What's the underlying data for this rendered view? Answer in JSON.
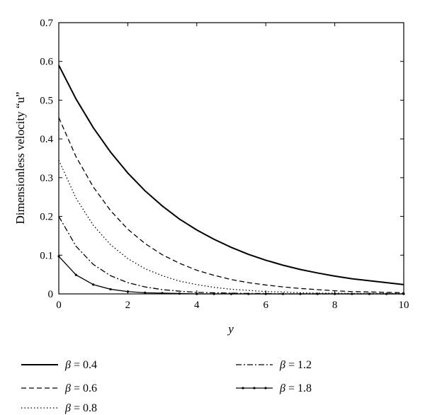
{
  "chart_data": {
    "type": "line",
    "title": "",
    "xlabel": "y",
    "ylabel": "Dimensionless velocity “u”",
    "xlim": [
      0,
      10
    ],
    "ylim": [
      0,
      0.7
    ],
    "xticks": [
      0,
      2,
      4,
      6,
      8,
      10
    ],
    "xtick_labels": [
      "0",
      "2",
      "4",
      "6",
      "8",
      "10"
    ],
    "yticks": [
      0,
      0.1,
      0.2,
      0.3,
      0.4,
      0.5,
      0.6,
      0.7
    ],
    "ytick_labels": [
      "0",
      "0.1",
      "0.2",
      "0.3",
      "0.4",
      "0.5",
      "0.6",
      "0.7"
    ],
    "grid": false,
    "legend_position": "bottom",
    "x": [
      0,
      0.5,
      1,
      1.5,
      2,
      2.5,
      3,
      3.5,
      4,
      4.5,
      5,
      5.5,
      6,
      6.5,
      7,
      7.5,
      8,
      8.5,
      9,
      9.5,
      10
    ],
    "series": [
      {
        "name": "β = 0.4",
        "style": "solid",
        "values": [
          0.59,
          0.503,
          0.429,
          0.366,
          0.312,
          0.266,
          0.227,
          0.193,
          0.165,
          0.141,
          0.12,
          0.102,
          0.087,
          0.074,
          0.063,
          0.054,
          0.046,
          0.039,
          0.034,
          0.029,
          0.024
        ]
      },
      {
        "name": "β = 0.6",
        "style": "dashed",
        "values": [
          0.455,
          0.354,
          0.276,
          0.215,
          0.167,
          0.13,
          0.101,
          0.079,
          0.061,
          0.048,
          0.037,
          0.029,
          0.023,
          0.018,
          0.014,
          0.011,
          0.008,
          0.006,
          0.005,
          0.004,
          0.003
        ]
      },
      {
        "name": "β = 0.8",
        "style": "dotted",
        "values": [
          0.345,
          0.247,
          0.177,
          0.127,
          0.091,
          0.065,
          0.047,
          0.033,
          0.024,
          0.017,
          0.012,
          0.009,
          0.006,
          0.005,
          0.003,
          0.002,
          0.002,
          0.001,
          0.001,
          0.001,
          0.001
        ]
      },
      {
        "name": "β = 1.2",
        "style": "dashdot",
        "values": [
          0.2,
          0.123,
          0.076,
          0.047,
          0.029,
          0.018,
          0.011,
          0.007,
          0.004,
          0.003,
          0.002,
          0.001,
          0.001,
          0.0,
          0.0,
          0.0,
          0.0,
          0.0,
          0.0,
          0.0,
          0.0
        ]
      },
      {
        "name": "β = 1.8",
        "style": "solid-marker",
        "values": [
          0.097,
          0.049,
          0.024,
          0.012,
          0.006,
          0.003,
          0.002,
          0.001,
          0.0,
          0.0,
          0.0,
          0.0,
          0.0,
          0.0,
          0.0,
          0.0,
          0.0,
          0.0,
          0.0,
          0.0,
          0.0
        ]
      }
    ],
    "legend": [
      {
        "symbol": "β",
        "text": " = 0.4",
        "style": "solid"
      },
      {
        "symbol": "β",
        "text": " = 0.6",
        "style": "dashed"
      },
      {
        "symbol": "β",
        "text": " = 0.8",
        "style": "dotted"
      },
      {
        "symbol": "β",
        "text": " = 1.2",
        "style": "dashdot"
      },
      {
        "symbol": "β",
        "text": " = 1.8",
        "style": "solid-marker"
      }
    ]
  }
}
